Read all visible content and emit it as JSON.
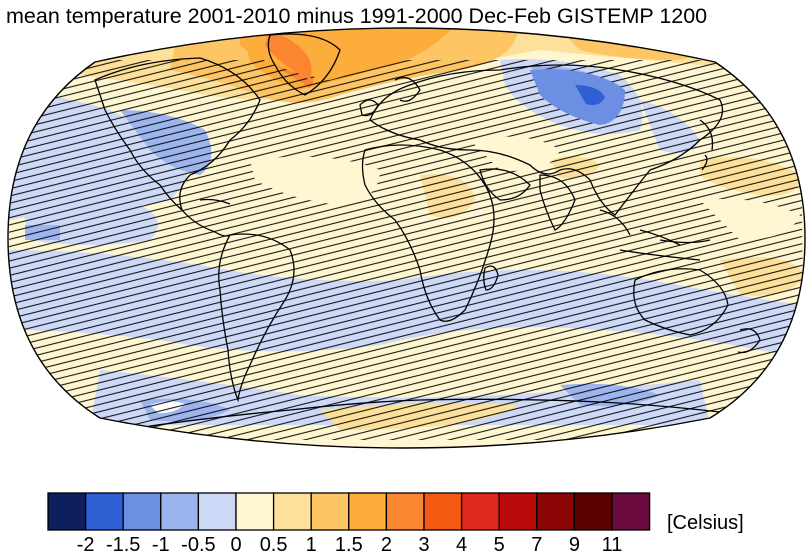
{
  "title": "mean temperature 2001-2010 minus 1991-2000 Dec-Feb GISTEMP 1200",
  "colorbar": {
    "unit_label": "[Celsius]",
    "ticks": [
      "-2",
      "-1.5",
      "-1",
      "-0.5",
      "0",
      "0.5",
      "1",
      "1.5",
      "2",
      "3",
      "4",
      "5",
      "7",
      "9",
      "11"
    ],
    "colors": [
      "#0d1f5c",
      "#2f5fd3",
      "#6d8fe3",
      "#9db5ef",
      "#cdd9f7",
      "#fff7d1",
      "#fde09a",
      "#fdc564",
      "#fcad3b",
      "#fb8632",
      "#f55a13",
      "#e0291d",
      "#ba0b0b",
      "#8c0505",
      "#5c0202",
      "#6b0a3f"
    ]
  },
  "map": {
    "projection": "robinson",
    "hatching": "stippled (low significance)",
    "colors": {
      "ocean_base": "#fff7d1",
      "land": "#fff7d1",
      "cool": "#cdd9f7",
      "cooler": "#9db5ef",
      "coolest": "#6d8fe3",
      "deep_cool": "#2f5fd3",
      "warm": "#fde09a",
      "warmer": "#fdc564",
      "hot": "#fcad3b",
      "hotter": "#fb8632",
      "hottest": "#f55a13"
    }
  }
}
